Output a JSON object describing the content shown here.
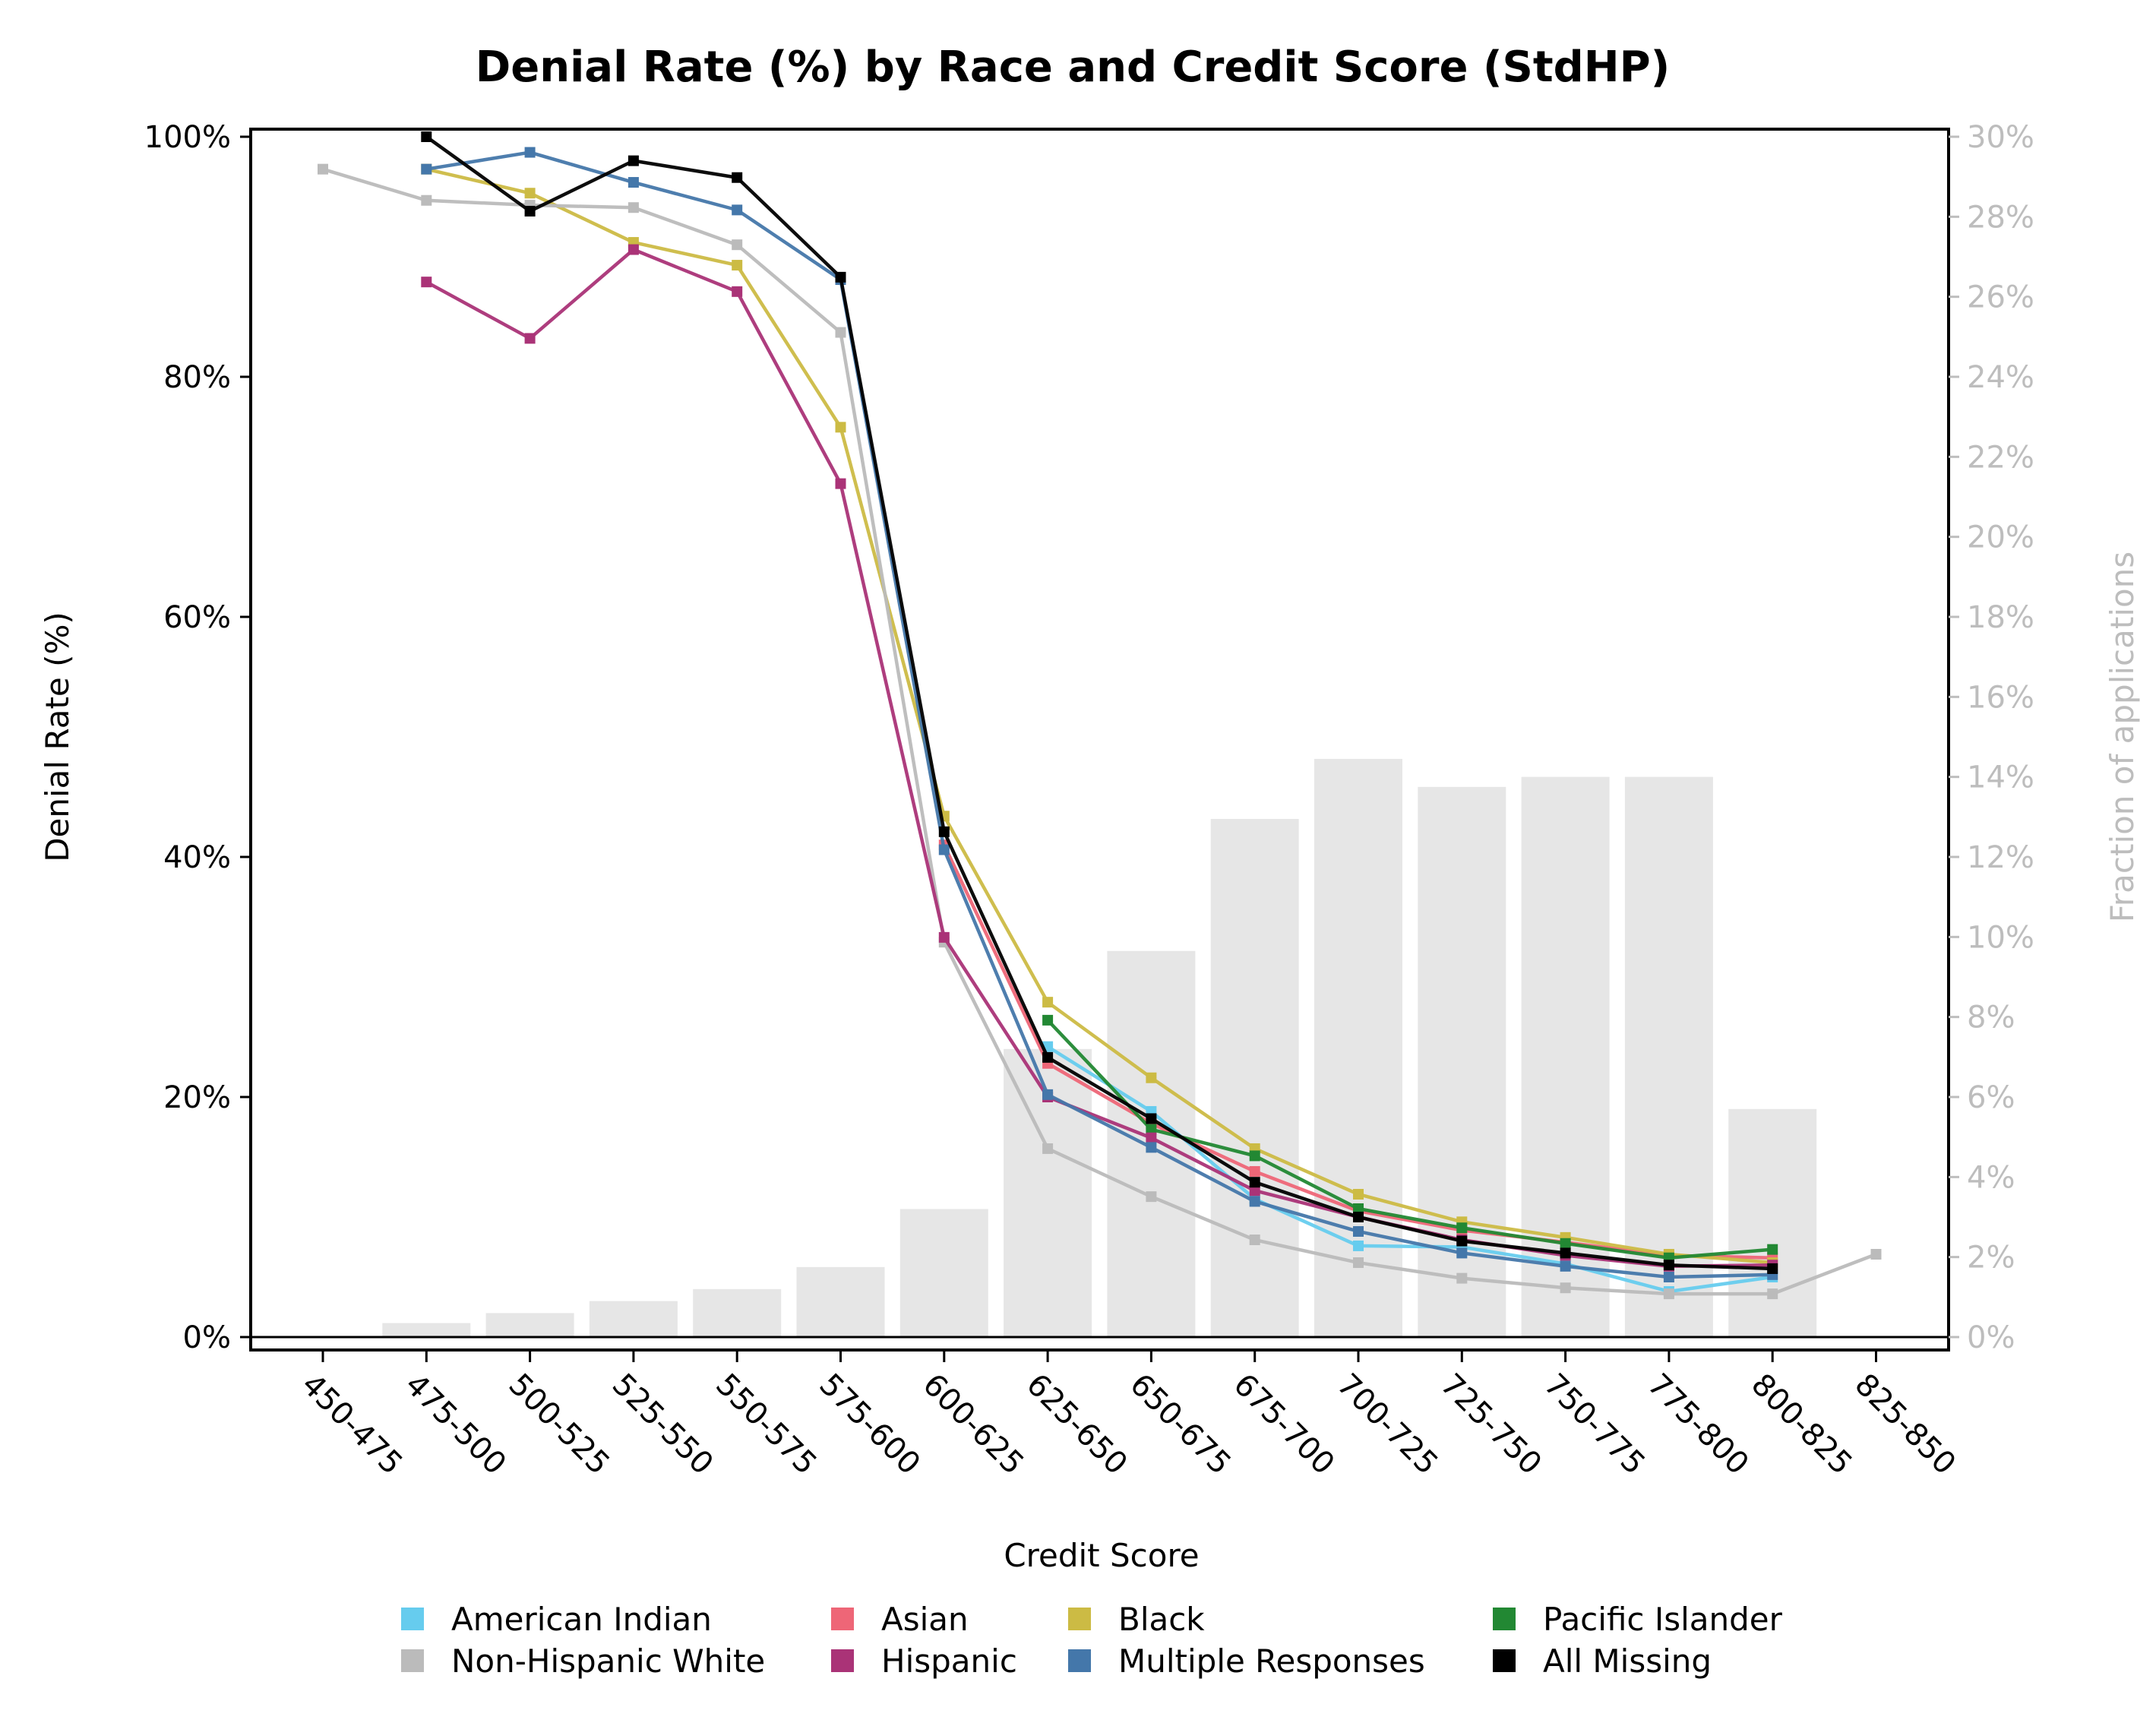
{
  "chart_data": {
    "type": "line",
    "title": "Denial Rate (%) by Race and Credit Score (StdHP)",
    "xlabel": "Credit Score",
    "ylabel": "Denial Rate (%)",
    "y2label": "Fraction of applications",
    "ylim": [
      0,
      100
    ],
    "y2lim": [
      0,
      30
    ],
    "yticks": [
      "0%",
      "20%",
      "40%",
      "60%",
      "80%",
      "100%"
    ],
    "y2ticks": [
      "0%",
      "2%",
      "4%",
      "6%",
      "8%",
      "10%",
      "12%",
      "14%",
      "16%",
      "18%",
      "20%",
      "22%",
      "24%",
      "26%",
      "28%",
      "30%"
    ],
    "categories": [
      "450-475",
      "475-500",
      "500-525",
      "525-550",
      "550-575",
      "575-600",
      "600-625",
      "625-650",
      "650-675",
      "675-700",
      "700-725",
      "725-750",
      "750-775",
      "775-800",
      "800-825",
      "825-850"
    ],
    "bars": {
      "name": "Fraction of applications",
      "color": "#e6e6e6",
      "values": [
        0.0,
        0.35,
        0.6,
        0.9,
        1.2,
        1.75,
        3.2,
        7.2,
        9.65,
        12.95,
        14.45,
        13.75,
        14.0,
        14.0,
        5.7,
        0.0
      ]
    },
    "series": [
      {
        "name": "American Indian",
        "color": "#66ccee",
        "values": [
          null,
          null,
          null,
          null,
          null,
          null,
          null,
          24.2,
          18.8,
          11.5,
          7.6,
          7.5,
          6.1,
          3.8,
          5.0,
          null
        ]
      },
      {
        "name": "Asian",
        "color": "#ee6677",
        "values": [
          null,
          null,
          null,
          null,
          null,
          null,
          41.0,
          22.8,
          17.8,
          13.8,
          10.5,
          8.9,
          7.9,
          6.8,
          6.6,
          null
        ]
      },
      {
        "name": "Black",
        "color": "#ccbb44",
        "values": [
          null,
          97.3,
          95.3,
          91.2,
          89.3,
          75.8,
          43.4,
          27.9,
          21.6,
          15.7,
          11.9,
          9.6,
          8.3,
          6.9,
          6.2,
          null
        ]
      },
      {
        "name": "Pacific Islander",
        "color": "#228833",
        "values": [
          null,
          null,
          null,
          null,
          null,
          null,
          null,
          26.4,
          17.3,
          15.1,
          10.7,
          9.1,
          7.8,
          6.6,
          7.3,
          null
        ]
      },
      {
        "name": "Non-Hispanic White",
        "color": "#bbbbbb",
        "values": [
          97.3,
          94.7,
          94.3,
          94.1,
          91.0,
          83.7,
          32.9,
          15.7,
          11.7,
          8.1,
          6.2,
          4.9,
          4.1,
          3.6,
          3.6,
          6.9
        ]
      },
      {
        "name": "Hispanic",
        "color": "#aa3377",
        "values": [
          null,
          87.9,
          83.2,
          90.6,
          87.1,
          71.1,
          33.3,
          20.0,
          16.6,
          12.2,
          10.0,
          8.1,
          6.8,
          5.9,
          6.0,
          null
        ]
      },
      {
        "name": "Multiple Responses",
        "color": "#4477aa",
        "values": [
          null,
          97.3,
          98.7,
          96.2,
          93.9,
          88.1,
          40.6,
          20.2,
          15.8,
          11.3,
          8.8,
          7.0,
          5.9,
          5.0,
          5.2,
          null
        ]
      },
      {
        "name": "All Missing",
        "color": "#000000",
        "values": [
          null,
          100.0,
          93.8,
          98.0,
          96.6,
          88.3,
          42.1,
          23.3,
          18.2,
          12.9,
          10.0,
          8.0,
          7.0,
          6.0,
          5.7,
          null
        ]
      }
    ],
    "legend": [
      {
        "name": "American Indian",
        "color": "#66ccee"
      },
      {
        "name": "Non-Hispanic White",
        "color": "#bbbbbb"
      },
      {
        "name": "Asian",
        "color": "#ee6677"
      },
      {
        "name": "Hispanic",
        "color": "#aa3377"
      },
      {
        "name": "Black",
        "color": "#ccbb44"
      },
      {
        "name": "Multiple Responses",
        "color": "#4477aa"
      },
      {
        "name": "Pacific Islander",
        "color": "#228833"
      },
      {
        "name": "All Missing",
        "color": "#000000"
      }
    ],
    "legend_position": "bottom-center"
  }
}
